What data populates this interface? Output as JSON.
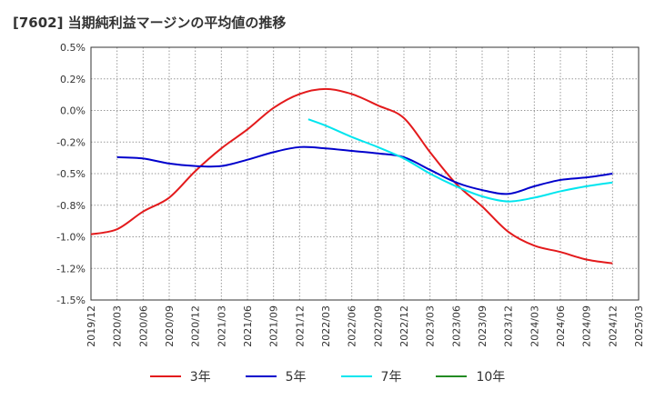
{
  "title": "[7602]  当期純利益マージンの平均値の推移",
  "chart_data": {
    "type": "line",
    "title": "[7602]  当期純利益マージンの平均値の推移",
    "xlabel": "",
    "ylabel": "",
    "ylim": [
      -1.5,
      0.5
    ],
    "y_ticks": [
      "0.5%",
      "0.2%",
      "0.0%",
      "-0.2%",
      "-0.5%",
      "-0.8%",
      "-1.0%",
      "-1.2%",
      "-1.5%"
    ],
    "x_ticks": [
      "2019/12",
      "2020/03",
      "2020/06",
      "2020/09",
      "2020/12",
      "2021/03",
      "2021/06",
      "2021/09",
      "2021/12",
      "2022/03",
      "2022/06",
      "2022/09",
      "2022/12",
      "2023/03",
      "2023/06",
      "2023/09",
      "2023/12",
      "2024/03",
      "2024/06",
      "2024/09",
      "2024/12",
      "2025/03"
    ],
    "grid": true,
    "legend_position": "bottom",
    "series": [
      {
        "name": "3年",
        "color": "#e31a1c",
        "values": [
          [
            "2019/12",
            -0.98
          ],
          [
            "2020/03",
            -0.94
          ],
          [
            "2020/06",
            -0.8
          ],
          [
            "2020/09",
            -0.69
          ],
          [
            "2020/12",
            -0.48
          ],
          [
            "2021/03",
            -0.3
          ],
          [
            "2021/06",
            -0.15
          ],
          [
            "2021/09",
            0.02
          ],
          [
            "2021/12",
            0.13
          ],
          [
            "2022/03",
            0.17
          ],
          [
            "2022/06",
            0.13
          ],
          [
            "2022/09",
            0.04
          ],
          [
            "2022/12",
            -0.06
          ],
          [
            "2023/03",
            -0.33
          ],
          [
            "2023/06",
            -0.58
          ],
          [
            "2023/09",
            -0.76
          ],
          [
            "2023/12",
            -0.96
          ],
          [
            "2024/03",
            -1.07
          ],
          [
            "2024/06",
            -1.12
          ],
          [
            "2024/09",
            -1.18
          ],
          [
            "2024/12",
            -1.21
          ]
        ]
      },
      {
        "name": "5年",
        "color": "#0000cc",
        "values": [
          [
            "2020/03",
            -0.37
          ],
          [
            "2020/06",
            -0.38
          ],
          [
            "2020/09",
            -0.42
          ],
          [
            "2020/12",
            -0.44
          ],
          [
            "2021/03",
            -0.44
          ],
          [
            "2021/06",
            -0.39
          ],
          [
            "2021/09",
            -0.33
          ],
          [
            "2021/12",
            -0.29
          ],
          [
            "2022/03",
            -0.3
          ],
          [
            "2022/06",
            -0.32
          ],
          [
            "2022/09",
            -0.34
          ],
          [
            "2022/12",
            -0.37
          ],
          [
            "2023/03",
            -0.47
          ],
          [
            "2023/06",
            -0.57
          ],
          [
            "2023/09",
            -0.63
          ],
          [
            "2023/12",
            -0.66
          ],
          [
            "2024/03",
            -0.6
          ],
          [
            "2024/06",
            -0.55
          ],
          [
            "2024/09",
            -0.53
          ],
          [
            "2024/12",
            -0.5
          ]
        ]
      },
      {
        "name": "7年",
        "color": "#00e5ee",
        "values": [
          [
            "2022/01",
            -0.07
          ],
          [
            "2022/03",
            -0.12
          ],
          [
            "2022/06",
            -0.21
          ],
          [
            "2022/09",
            -0.29
          ],
          [
            "2022/12",
            -0.38
          ],
          [
            "2023/03",
            -0.5
          ],
          [
            "2023/06",
            -0.6
          ],
          [
            "2023/09",
            -0.68
          ],
          [
            "2023/12",
            -0.72
          ],
          [
            "2024/03",
            -0.69
          ],
          [
            "2024/06",
            -0.64
          ],
          [
            "2024/09",
            -0.6
          ],
          [
            "2024/12",
            -0.57
          ]
        ]
      },
      {
        "name": "10年",
        "color": "#228b22",
        "values": []
      }
    ]
  }
}
